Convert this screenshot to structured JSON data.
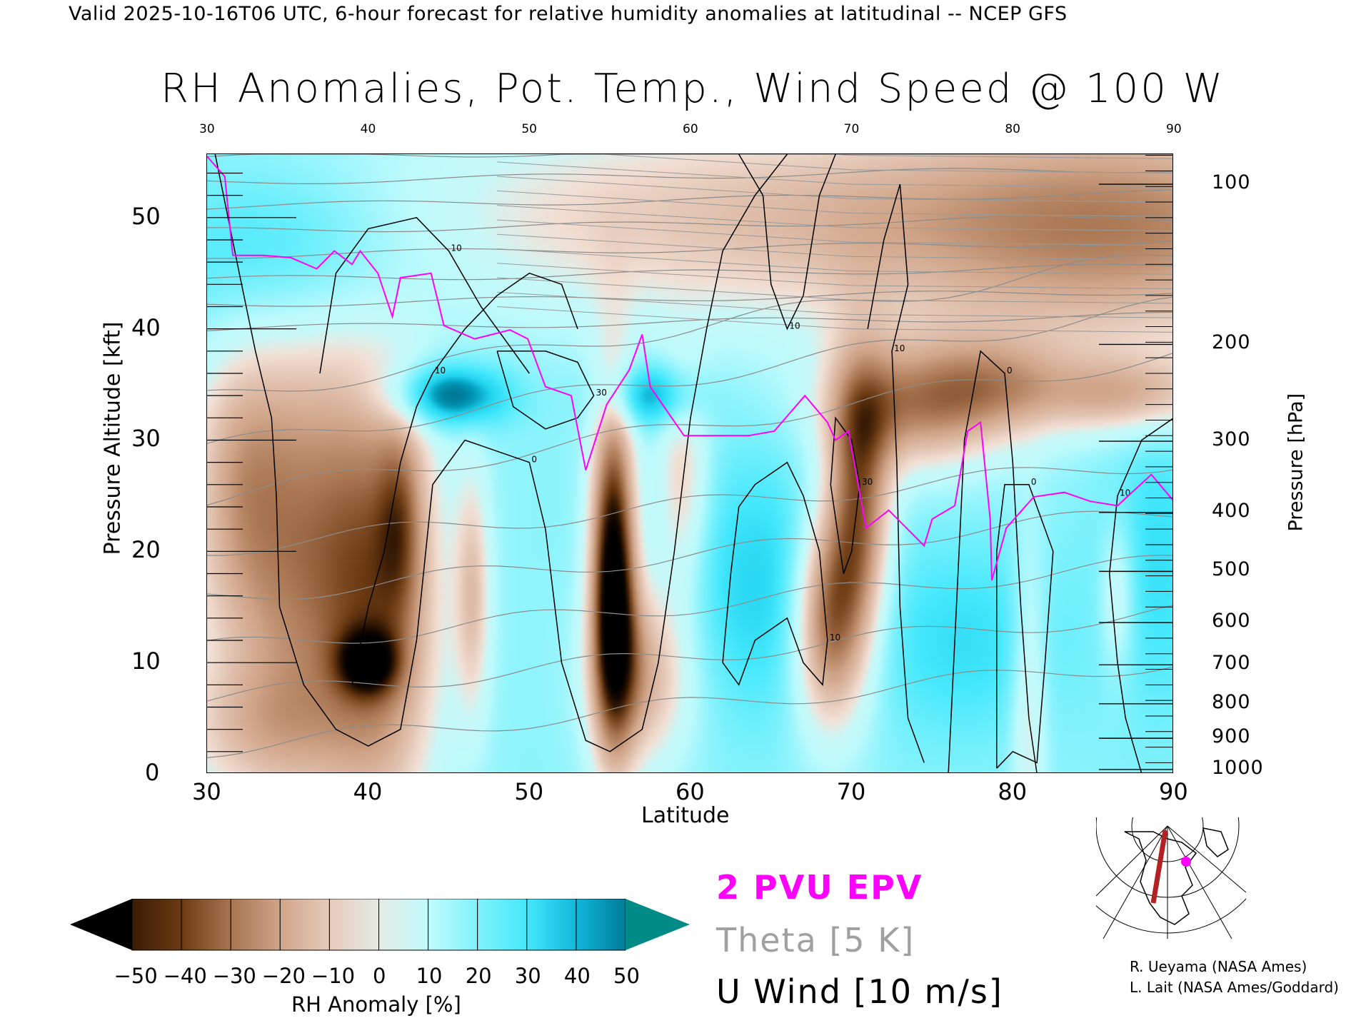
{
  "header": {
    "subtitle": "Valid 2025-10-16T06 UTC, 6-hour forecast for relative humidity anomalies at latitudinal -- NCEP GFS",
    "title": "RH Anomalies, Pot. Temp., Wind Speed @ 100 W"
  },
  "chart_data": {
    "type": "heatmap",
    "title": "RH Anomalies, Pot. Temp., Wind Speed @ 100 W",
    "xlabel": "Latitude",
    "ylabel": "Pressure Altitude [kft]",
    "y2label": "Pressure [hPa]",
    "xlim": [
      30,
      90
    ],
    "ylim": [
      0,
      55.7
    ],
    "x_ticks": [
      "30",
      "40",
      "50",
      "60",
      "70",
      "80",
      "90"
    ],
    "x_tick_values": [
      30,
      40,
      50,
      60,
      70,
      80,
      90
    ],
    "top_ticks": [
      "30",
      "40",
      "50",
      "60",
      "70",
      "80",
      "90"
    ],
    "y_ticks": [
      "0",
      "10",
      "20",
      "30",
      "40",
      "50"
    ],
    "y_tick_values": [
      0,
      10,
      20,
      30,
      40,
      50
    ],
    "pressure_ticks": [
      {
        "label": "100",
        "kft": 53.0
      },
      {
        "label": "200",
        "kft": 38.6
      },
      {
        "label": "300",
        "kft": 29.9
      },
      {
        "label": "400",
        "kft": 23.5
      },
      {
        "label": "500",
        "kft": 18.2
      },
      {
        "label": "600",
        "kft": 13.6
      },
      {
        "label": "700",
        "kft": 9.8
      },
      {
        "label": "800",
        "kft": 6.3
      },
      {
        "label": "900",
        "kft": 3.2
      },
      {
        "label": "1000",
        "kft": 0.4
      }
    ],
    "colorbar": {
      "title": "RH Anomaly [%]",
      "levels": [
        "-50",
        "-40",
        "-30",
        "-20",
        "-10",
        "0",
        "10",
        "20",
        "30",
        "40",
        "50"
      ],
      "colors": [
        "#3a1c06",
        "#6b3a12",
        "#a87550",
        "#d0a488",
        "#e6cbbb",
        "#e4eae4",
        "#c0fafc",
        "#80f2fc",
        "#44e8fc",
        "#10b8dc",
        "#007a96"
      ],
      "under_color": "#000000",
      "over_color": "#008b86"
    },
    "rh_anomaly_base": 18,
    "rh_anomaly_features": [
      {
        "lat": 70,
        "kft": 50,
        "slat": 22,
        "skft": 7,
        "amp": -30
      },
      {
        "lat": 88,
        "kft": 48,
        "slat": 10,
        "skft": 9,
        "amp": -25
      },
      {
        "lat": 36,
        "kft": 20,
        "slat": 4.5,
        "skft": 16,
        "amp": -45
      },
      {
        "lat": 41,
        "kft": 14,
        "slat": 2.5,
        "skft": 14,
        "amp": -30
      },
      {
        "lat": 40,
        "kft": 10,
        "slat": 1.3,
        "skft": 2,
        "amp": -35
      },
      {
        "lat": 42,
        "kft": 23,
        "slat": 1.0,
        "skft": 6,
        "amp": -20
      },
      {
        "lat": 32,
        "kft": 27,
        "slat": 2,
        "skft": 8,
        "amp": -15
      },
      {
        "lat": 33,
        "kft": 4,
        "slat": 4,
        "skft": 4,
        "amp": -15
      },
      {
        "lat": 55.2,
        "kft": 18,
        "slat": 1.0,
        "skft": 11,
        "amp": -75
      },
      {
        "lat": 57,
        "kft": 9,
        "slat": 2.2,
        "skft": 6,
        "amp": -35
      },
      {
        "lat": 68.5,
        "kft": 14,
        "slat": 1.6,
        "skft": 7,
        "amp": -55
      },
      {
        "lat": 70.5,
        "kft": 24,
        "slat": 1.4,
        "skft": 9,
        "amp": -50
      },
      {
        "lat": 74,
        "kft": 33,
        "slat": 4,
        "skft": 4,
        "amp": -40
      },
      {
        "lat": 79,
        "kft": 35,
        "slat": 3,
        "skft": 3,
        "amp": -20
      },
      {
        "lat": 87,
        "kft": 34,
        "slat": 4,
        "skft": 2.5,
        "amp": -30
      },
      {
        "lat": 46.5,
        "kft": 16,
        "slat": 0.8,
        "skft": 8,
        "amp": -25
      },
      {
        "lat": 59.5,
        "kft": 26,
        "slat": 1.2,
        "skft": 7,
        "amp": -25
      },
      {
        "lat": 86.5,
        "kft": 16,
        "slat": 0.8,
        "skft": 5,
        "amp": -20
      },
      {
        "lat": 81,
        "kft": 7,
        "slat": 0.8,
        "skft": 10,
        "amp": -20
      },
      {
        "lat": 45,
        "kft": 34,
        "slat": 2.5,
        "skft": 2,
        "amp": 40
      },
      {
        "lat": 57.5,
        "kft": 34,
        "slat": 2,
        "skft": 2,
        "amp": 30
      },
      {
        "lat": 35,
        "kft": 47,
        "slat": 6,
        "skft": 6,
        "amp": 25
      },
      {
        "lat": 65,
        "kft": 17,
        "slat": 4,
        "skft": 8,
        "amp": 20
      },
      {
        "lat": 77,
        "kft": 12,
        "slat": 4,
        "skft": 6,
        "amp": 15
      },
      {
        "lat": 89,
        "kft": 20,
        "slat": 2.5,
        "skft": 10,
        "amp": 15
      }
    ],
    "theta_contours": {
      "label": "Theta [5 K]",
      "levels": [
        270,
        280,
        290,
        300,
        310,
        320,
        330,
        340,
        350,
        360,
        370,
        380,
        390,
        400,
        410,
        420
      ],
      "color": "#8c8c8c"
    },
    "pv_2pvu": {
      "label": "2 PVU EPV",
      "color": "#ff00ff",
      "points": [
        [
          30,
          55.5
        ],
        [
          31.1,
          53.7
        ],
        [
          31.6,
          46.6
        ],
        [
          33.5,
          46.6
        ],
        [
          35.2,
          46.4
        ],
        [
          36.8,
          45.4
        ],
        [
          37.9,
          47
        ],
        [
          39,
          45.8
        ],
        [
          39.5,
          47
        ],
        [
          40.6,
          45
        ],
        [
          41.5,
          41.1
        ],
        [
          42,
          44.6
        ],
        [
          43.9,
          45
        ],
        [
          44.7,
          40.3
        ],
        [
          46.6,
          39.1
        ],
        [
          48.8,
          39.9
        ],
        [
          49.9,
          39.1
        ],
        [
          51,
          34.8
        ],
        [
          52.6,
          34
        ],
        [
          53.5,
          27.3
        ],
        [
          54.8,
          33.2
        ],
        [
          56.2,
          36.3
        ],
        [
          57,
          39.5
        ],
        [
          57.5,
          34.8
        ],
        [
          59.6,
          30.4
        ],
        [
          63.6,
          30.4
        ],
        [
          65.2,
          30.8
        ],
        [
          67.1,
          34
        ],
        [
          68.5,
          31.6
        ],
        [
          69,
          30
        ],
        [
          69.8,
          30.8
        ],
        [
          70.9,
          22.1
        ],
        [
          72.3,
          23.7
        ],
        [
          74.5,
          20.5
        ],
        [
          75,
          22.9
        ],
        [
          76.4,
          24.1
        ],
        [
          77.2,
          30.8
        ],
        [
          78,
          31.6
        ],
        [
          78.6,
          22.9
        ],
        [
          78.7,
          17.4
        ],
        [
          79.6,
          22.1
        ],
        [
          81.3,
          24.9
        ],
        [
          83.2,
          25.3
        ],
        [
          84.8,
          24.5
        ],
        [
          86.5,
          24.1
        ],
        [
          88.6,
          26.9
        ],
        [
          90,
          24.5
        ]
      ]
    },
    "u_wind": {
      "label": "U Wind [10 m/s]",
      "contours": [
        {
          "label": "0",
          "points": [
            [
              30.5,
              55.7
            ],
            [
              32,
              45
            ],
            [
              33,
              38
            ],
            [
              34,
              32
            ],
            [
              34.3,
              25
            ],
            [
              34.5,
              15
            ],
            [
              36,
              8
            ],
            [
              38,
              4
            ],
            [
              40,
              2.5
            ],
            [
              42,
              4
            ],
            [
              43,
              12
            ],
            [
              44,
              26
            ],
            [
              46,
              30
            ],
            [
              50,
              28
            ],
            [
              51,
              22
            ],
            [
              52,
              10
            ],
            [
              53.5,
              3
            ],
            [
              55,
              2
            ],
            [
              57,
              4
            ],
            [
              58,
              10
            ],
            [
              59,
              20
            ],
            [
              60,
              32
            ],
            [
              61,
              40
            ],
            [
              62,
              47
            ],
            [
              64,
              52
            ],
            [
              66,
              55.7
            ]
          ]
        },
        {
          "label": "10",
          "points": [
            [
              37,
              36
            ],
            [
              38,
              45
            ],
            [
              40,
              49
            ],
            [
              43,
              50
            ],
            [
              45,
              47
            ],
            [
              47,
              42
            ],
            [
              49,
              38
            ],
            [
              50,
              36
            ]
          ]
        },
        {
          "label": "10",
          "points": [
            [
              39,
              8
            ],
            [
              40,
              15
            ],
            [
              41,
              20
            ],
            [
              42,
              28
            ],
            [
              43,
              33
            ],
            [
              44,
              36
            ],
            [
              46,
              40
            ],
            [
              48,
              43
            ],
            [
              50,
              45
            ],
            [
              52,
              44
            ],
            [
              53,
              40
            ]
          ]
        },
        {
          "label": "30",
          "points": [
            [
              48,
              38
            ],
            [
              49,
              33
            ],
            [
              51,
              31
            ],
            [
              53,
              32
            ],
            [
              54,
              34
            ],
            [
              53,
              37
            ],
            [
              51,
              38
            ],
            [
              48,
              38
            ]
          ]
        },
        {
          "label": "10",
          "points": [
            [
              62,
              10
            ],
            [
              62.5,
              18
            ],
            [
              63,
              24
            ],
            [
              64,
              26
            ],
            [
              66,
              28
            ],
            [
              67,
              25
            ],
            [
              68,
              20
            ],
            [
              68.5,
              12
            ],
            [
              68.2,
              8
            ],
            [
              67,
              10
            ],
            [
              66,
              14
            ],
            [
              64,
              12
            ],
            [
              63,
              8
            ],
            [
              62,
              10
            ]
          ]
        },
        {
          "label": "30",
          "points": [
            [
              68.7,
              26
            ],
            [
              69,
              32
            ],
            [
              70,
              30
            ],
            [
              70.5,
              26
            ],
            [
              70,
              20
            ],
            [
              69.5,
              18
            ],
            [
              68.7,
              26
            ]
          ]
        },
        {
          "label": "10",
          "points": [
            [
              71,
              40
            ],
            [
              72,
              48
            ],
            [
              73,
              53
            ],
            [
              73.5,
              44
            ],
            [
              72.5,
              38
            ],
            [
              72.8,
              28
            ],
            [
              73,
              15
            ],
            [
              73.5,
              5
            ],
            [
              74.5,
              1
            ]
          ]
        },
        {
          "label": "0",
          "points": [
            [
              76,
              0
            ],
            [
              76.5,
              15
            ],
            [
              77,
              30
            ],
            [
              78,
              38
            ],
            [
              79.5,
              36
            ],
            [
              80,
              28
            ],
            [
              80.5,
              15
            ],
            [
              81,
              5
            ],
            [
              81.5,
              0
            ]
          ]
        },
        {
          "label": "0",
          "points": [
            [
              79,
              0.5
            ],
            [
              80,
              2
            ],
            [
              81.5,
              1
            ],
            [
              82,
              10
            ],
            [
              82.5,
              20
            ],
            [
              81,
              26
            ],
            [
              79.5,
              26
            ],
            [
              79,
              20
            ],
            [
              79,
              10
            ],
            [
              79,
              0.5
            ]
          ]
        },
        {
          "label": "10",
          "points": [
            [
              88,
              0
            ],
            [
              87,
              5
            ],
            [
              86.5,
              10
            ],
            [
              86,
              18
            ],
            [
              86.5,
              25
            ],
            [
              88,
              30
            ],
            [
              89,
              31
            ],
            [
              90,
              32
            ]
          ]
        },
        {
          "label": "10",
          "points": [
            [
              63,
              55.7
            ],
            [
              64.5,
              52
            ],
            [
              65,
              44
            ],
            [
              66,
              40
            ],
            [
              67,
              43
            ],
            [
              68,
              52
            ],
            [
              69,
              55.7
            ]
          ]
        }
      ]
    }
  },
  "legend": {
    "pv": "2 PVU EPV",
    "theta": "Theta [5 K]",
    "uwind": "U Wind [10 m/s]",
    "pv_color": "#ff00ff",
    "theta_color": "#a0a0a0"
  },
  "map_inset": {
    "section_color": "#b22222",
    "marker_color": "#ff00ff"
  },
  "credits": {
    "line1": "R. Ueyama (NASA Ames)",
    "line2": "L. Lait (NASA Ames/Goddard)"
  }
}
